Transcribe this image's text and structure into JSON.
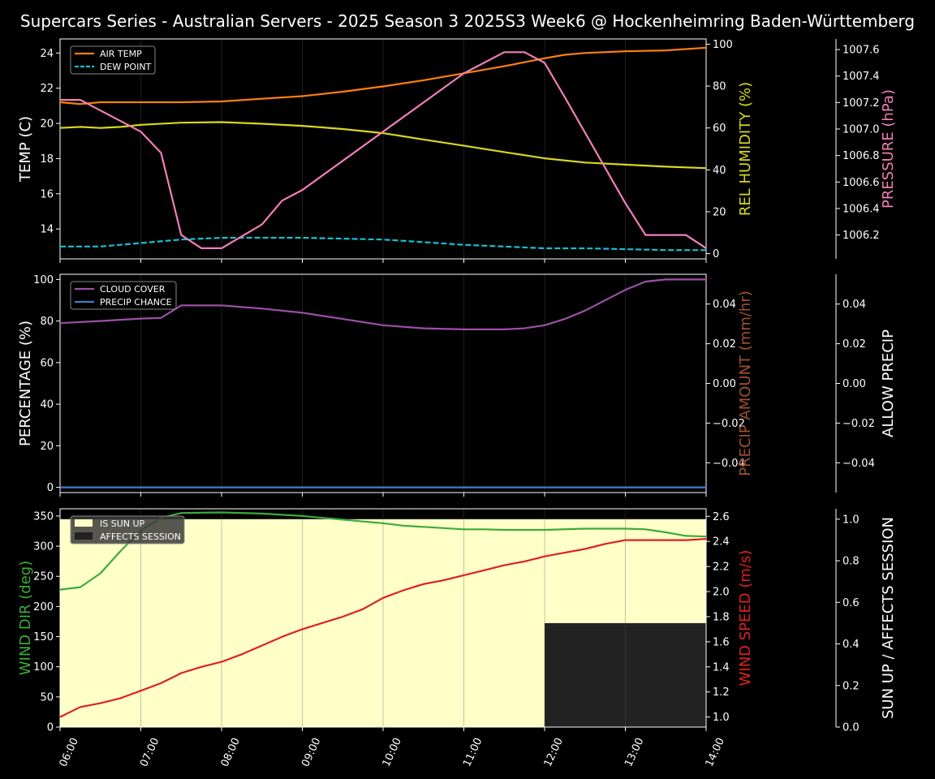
{
  "title": "Supercars Series - Australian Servers - 2025 Season 3 2025S3 Week6 @ Hockenheimring Baden-Württemberg",
  "colors": {
    "air_temp": "#ff7f0e",
    "dew_point": "#17becf",
    "humidity": "#d8d81e",
    "pressure": "#f07fb8",
    "cloud": "#9d4fa7",
    "precip_chance": "#3e7fc4",
    "precip_amount": "#a0522d",
    "wind_dir": "#3daa3d",
    "wind_speed": "#e02020",
    "sun_up": "#ffffc8",
    "affects": "#222222"
  },
  "chart_data": [
    {
      "type": "line",
      "x_ticks": [
        "06:00",
        "07:00",
        "08:00",
        "09:00",
        "10:00",
        "11:00",
        "12:00",
        "13:00",
        "14:00"
      ],
      "xlim": [
        "06:00",
        "14:00"
      ],
      "axes": {
        "left": {
          "label": "TEMP (C)",
          "ticks": [
            14,
            16,
            18,
            20,
            22,
            24
          ],
          "range": [
            12.3,
            24.8
          ]
        },
        "right1": {
          "label": "REL HUMIDITY (%)",
          "ticks": [
            0,
            20,
            40,
            60,
            80,
            100
          ],
          "range": [
            -2.5,
            102.5
          ]
        },
        "right2": {
          "label": "PRESSURE (hPa)",
          "ticks": [
            1006.2,
            1006.4,
            1006.6,
            1006.8,
            1007.0,
            1007.2,
            1007.4,
            1007.6
          ],
          "range": [
            1006.02,
            1007.68
          ]
        }
      },
      "legend": {
        "placement": "top-left",
        "entries": [
          "AIR TEMP",
          "DEW POINT"
        ]
      },
      "series": [
        {
          "name": "AIR TEMP",
          "axis": "left",
          "style": "solid",
          "color_key": "air_temp",
          "x": [
            "06:00",
            "06:15",
            "06:30",
            "06:45",
            "07:00",
            "07:30",
            "08:00",
            "08:30",
            "09:00",
            "09:30",
            "10:00",
            "10:30",
            "11:00",
            "11:30",
            "12:00",
            "12:15",
            "12:30",
            "13:00",
            "13:30",
            "14:00"
          ],
          "values": [
            21.2,
            21.1,
            21.2,
            21.2,
            21.2,
            21.2,
            21.25,
            21.4,
            21.55,
            21.8,
            22.1,
            22.45,
            22.85,
            23.25,
            23.7,
            23.9,
            24.0,
            24.1,
            24.15,
            24.3
          ]
        },
        {
          "name": "DEW POINT",
          "axis": "left",
          "style": "dashed",
          "color_key": "dew_point",
          "x": [
            "06:00",
            "06:30",
            "07:00",
            "07:30",
            "08:00",
            "08:30",
            "09:00",
            "09:30",
            "10:00",
            "10:30",
            "11:00",
            "11:30",
            "12:00",
            "12:30",
            "13:00",
            "13:30",
            "14:00"
          ],
          "values": [
            13.0,
            13.0,
            13.2,
            13.4,
            13.5,
            13.5,
            13.5,
            13.45,
            13.4,
            13.25,
            13.1,
            13.0,
            12.9,
            12.9,
            12.85,
            12.8,
            12.8
          ]
        },
        {
          "name": "REL HUMIDITY",
          "axis": "right1",
          "style": "solid",
          "color_key": "humidity",
          "x": [
            "06:00",
            "06:15",
            "06:30",
            "06:45",
            "07:00",
            "07:30",
            "08:00",
            "08:30",
            "09:00",
            "09:30",
            "10:00",
            "10:30",
            "11:00",
            "11:30",
            "12:00",
            "12:30",
            "13:00",
            "13:30",
            "14:00"
          ],
          "values": [
            60,
            60.5,
            60,
            60.5,
            61.5,
            62.5,
            62.8,
            62,
            61,
            59.5,
            57.5,
            54.5,
            51.5,
            48.5,
            45.5,
            43.5,
            42.5,
            41.5,
            40.8
          ]
        },
        {
          "name": "PRESSURE",
          "axis": "right2",
          "style": "solid",
          "color_key": "pressure",
          "x": [
            "06:00",
            "06:15",
            "06:30",
            "06:45",
            "07:00",
            "07:15",
            "07:30",
            "07:45",
            "08:00",
            "08:30",
            "08:45",
            "09:00",
            "11:00",
            "11:30",
            "11:45",
            "12:00",
            "12:15",
            "13:00",
            "13:15",
            "13:45",
            "14:00"
          ],
          "values": [
            1007.22,
            1007.22,
            1007.14,
            1007.06,
            1006.98,
            1006.82,
            1006.2,
            1006.1,
            1006.1,
            1006.28,
            1006.46,
            1006.54,
            1007.42,
            1007.58,
            1007.58,
            1007.5,
            1007.24,
            1006.44,
            1006.2,
            1006.2,
            1006.1
          ]
        }
      ]
    },
    {
      "type": "line",
      "x_ticks": [
        "06:00",
        "07:00",
        "08:00",
        "09:00",
        "10:00",
        "11:00",
        "12:00",
        "13:00",
        "14:00"
      ],
      "axes": {
        "left": {
          "label": "PERCENTAGE (%)",
          "ticks": [
            0,
            20,
            40,
            60,
            80,
            100
          ],
          "range": [
            -2.5,
            102.5
          ]
        },
        "right1": {
          "label": "PRECIP AMOUNT (mm/hr)",
          "ticks": [
            -0.04,
            -0.02,
            0.0,
            0.02,
            0.04
          ],
          "range": [
            -0.055,
            0.055
          ]
        },
        "right2": {
          "label": "ALLOW PRECIP",
          "ticks": [
            -0.04,
            -0.02,
            0.0,
            0.02,
            0.04
          ],
          "range": [
            -0.055,
            0.055
          ]
        }
      },
      "legend": {
        "placement": "top-left",
        "entries": [
          "CLOUD COVER",
          "PRECIP CHANCE"
        ]
      },
      "series": [
        {
          "name": "CLOUD COVER",
          "axis": "left",
          "color_key": "cloud",
          "x": [
            "06:00",
            "06:30",
            "07:00",
            "07:15",
            "07:30",
            "08:00",
            "08:30",
            "09:00",
            "09:30",
            "10:00",
            "10:30",
            "11:00",
            "11:30",
            "11:45",
            "12:00",
            "12:15",
            "12:30",
            "13:00",
            "13:15",
            "13:30",
            "14:00"
          ],
          "values": [
            79,
            80,
            81.2,
            81.5,
            87.5,
            87.5,
            86,
            84,
            81,
            78,
            76.5,
            76,
            76,
            76.5,
            78,
            81,
            85,
            95,
            99,
            100,
            100
          ]
        },
        {
          "name": "PRECIP CHANCE",
          "axis": "left",
          "color_key": "precip_chance",
          "x": [
            "06:00",
            "14:00"
          ],
          "values": [
            0,
            0
          ]
        }
      ]
    },
    {
      "type": "line",
      "x_ticks": [
        "06:00",
        "07:00",
        "08:00",
        "09:00",
        "10:00",
        "11:00",
        "12:00",
        "13:00",
        "14:00"
      ],
      "axes": {
        "left": {
          "label": "WIND DIR (deg)",
          "ticks": [
            0,
            50,
            100,
            150,
            200,
            250,
            300,
            350
          ],
          "range": [
            0,
            362
          ]
        },
        "right1": {
          "label": "WIND SPEED (m/s)",
          "ticks": [
            1.0,
            1.2,
            1.4,
            1.6,
            1.8,
            2.0,
            2.2,
            2.4,
            2.6
          ],
          "range": [
            0.92,
            2.66
          ]
        },
        "right2": {
          "label": "SUN UP / AFFECTS SESSION",
          "ticks": [
            0.0,
            0.2,
            0.4,
            0.6,
            0.8,
            1.0
          ],
          "range": [
            0,
            1.05
          ]
        }
      },
      "legend": {
        "placement": "top-left",
        "entries": [
          "IS SUN UP",
          "AFFECTS SESSION"
        ]
      },
      "bands": [
        {
          "name": "IS SUN UP",
          "from": "06:00",
          "to": "14:00",
          "value": 1.0,
          "color_key": "sun_up"
        },
        {
          "name": "AFFECTS SESSION",
          "from": "12:00",
          "to": "14:00",
          "value": 0.5,
          "color_key": "affects"
        }
      ],
      "series": [
        {
          "name": "WIND DIR",
          "axis": "left",
          "color_key": "wind_dir",
          "x": [
            "06:00",
            "06:15",
            "06:30",
            "06:45",
            "07:00",
            "07:15",
            "07:30",
            "08:00",
            "08:30",
            "09:00",
            "09:30",
            "10:00",
            "10:15",
            "10:30",
            "11:00",
            "11:15",
            "11:30",
            "12:00",
            "12:30",
            "13:00",
            "13:15",
            "13:30",
            "13:45",
            "14:00"
          ],
          "values": [
            228,
            232,
            255,
            292,
            326,
            347,
            355,
            356,
            354,
            350,
            344,
            338,
            334,
            332,
            328,
            328,
            327,
            327,
            329,
            329,
            328,
            323,
            317,
            316
          ]
        },
        {
          "name": "WIND SPEED",
          "axis": "right1",
          "color_key": "wind_speed",
          "x": [
            "06:00",
            "06:15",
            "06:30",
            "06:45",
            "07:00",
            "07:15",
            "07:30",
            "07:45",
            "08:00",
            "08:15",
            "08:30",
            "08:45",
            "09:00",
            "09:15",
            "09:30",
            "09:45",
            "10:00",
            "10:15",
            "10:30",
            "10:45",
            "11:00",
            "11:15",
            "11:30",
            "11:45",
            "12:00",
            "12:15",
            "12:30",
            "12:45",
            "13:00",
            "13:15",
            "13:30",
            "13:45",
            "14:00"
          ],
          "values": [
            1.0,
            1.08,
            1.11,
            1.15,
            1.21,
            1.27,
            1.35,
            1.4,
            1.44,
            1.5,
            1.57,
            1.64,
            1.7,
            1.75,
            1.8,
            1.86,
            1.95,
            2.01,
            2.06,
            2.09,
            2.13,
            2.17,
            2.21,
            2.24,
            2.28,
            2.31,
            2.34,
            2.38,
            2.41,
            2.41,
            2.41,
            2.41,
            2.42
          ]
        }
      ]
    }
  ]
}
